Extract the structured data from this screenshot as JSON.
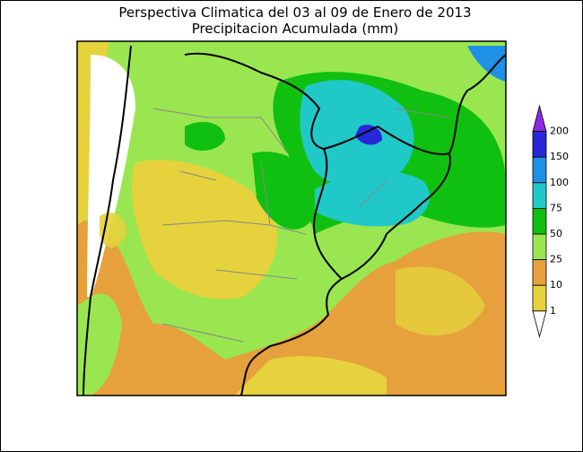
{
  "title": [
    "Perspectiva Climatica del 03 al 09 de Enero de 2013",
    "Precipitacion Acumulada (mm)"
  ],
  "legend": {
    "ticks": [
      200,
      150,
      100,
      75,
      50,
      25,
      10,
      1
    ],
    "colors": [
      "#8a2be2",
      "#2828d8",
      "#1e90e6",
      "#20c8c8",
      "#10c010",
      "#9ae650",
      "#e6a03c",
      "#e6d23c",
      "#ffffff"
    ]
  }
}
